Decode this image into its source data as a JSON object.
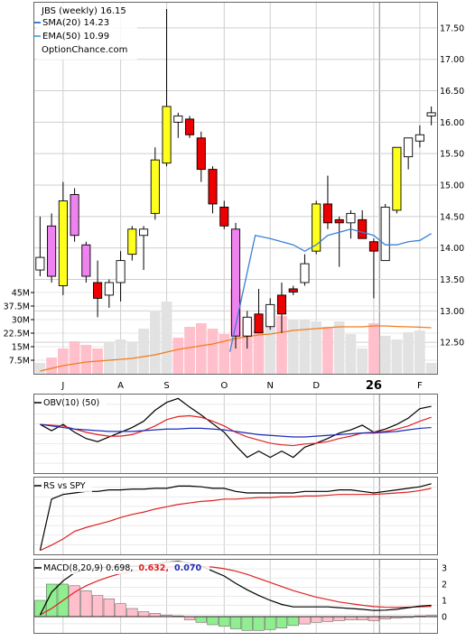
{
  "colors": {
    "up": "#ffff1e",
    "down": "#ee0000",
    "magenta": "#ee82ee",
    "white": "#ffffff",
    "sma": "#3a80d9",
    "ema": "#5ab5ee",
    "vol_red": "#ffc0cb",
    "vol_grey": "#e2e2e2",
    "vol_avg": "#f07c1e",
    "obv": "#000000",
    "obv_ma1": "#dd2222",
    "obv_ma2": "#1c2db8",
    "macd_line": "#000000",
    "macd_signal": "#dd2222",
    "hist_pos": "#90ee90",
    "hist_neg": "#ffc0cb",
    "grid": "#cfcfcf"
  },
  "chart_data": [
    {
      "type": "candlestick",
      "title": "JBS (weekly) 16.15",
      "legend": [
        {
          "label": "SMA(20) 14.23",
          "color": "#3a80d9"
        },
        {
          "label": "EMA(50) 10.99",
          "color": "#5ab5ee"
        },
        {
          "label": "OptionChance.com",
          "color": ""
        }
      ],
      "month_labels": [
        {
          "label": "J",
          "week": 2
        },
        {
          "label": "A",
          "week": 7
        },
        {
          "label": "S",
          "week": 11
        },
        {
          "label": "O",
          "week": 16
        },
        {
          "label": "N",
          "week": 20
        },
        {
          "label": "D",
          "week": 24
        },
        {
          "label": "26",
          "week": 29
        },
        {
          "label": "F",
          "week": 33
        }
      ],
      "year_divider_week": 29.5,
      "ylim": [
        12.0,
        17.9
      ],
      "yticks": [
        "12.50",
        "13.00",
        "13.50",
        "14.00",
        "14.50",
        "15.00",
        "15.50",
        "16.00",
        "16.50",
        "17.00",
        "17.50"
      ],
      "candles": [
        {
          "o": 13.65,
          "h": 14.5,
          "l": 13.55,
          "c": 13.85,
          "style": "white"
        },
        {
          "o": 13.55,
          "h": 14.55,
          "l": 13.45,
          "c": 14.35,
          "style": "magenta"
        },
        {
          "o": 13.4,
          "h": 15.05,
          "l": 13.25,
          "c": 14.75,
          "style": "up"
        },
        {
          "o": 14.2,
          "h": 14.95,
          "l": 14.1,
          "c": 14.85,
          "style": "magenta"
        },
        {
          "o": 13.55,
          "h": 14.1,
          "l": 13.45,
          "c": 14.05,
          "style": "magenta"
        },
        {
          "o": 13.45,
          "h": 13.8,
          "l": 12.9,
          "c": 13.2,
          "style": "down"
        },
        {
          "o": 13.25,
          "h": 13.5,
          "l": 13.05,
          "c": 13.45,
          "style": "white"
        },
        {
          "o": 13.45,
          "h": 13.95,
          "l": 13.15,
          "c": 13.8,
          "style": "white"
        },
        {
          "o": 13.9,
          "h": 14.35,
          "l": 13.8,
          "c": 14.3,
          "style": "up"
        },
        {
          "o": 14.2,
          "h": 14.35,
          "l": 13.65,
          "c": 14.3,
          "style": "white"
        },
        {
          "o": 14.55,
          "h": 15.6,
          "l": 14.45,
          "c": 15.4,
          "style": "up"
        },
        {
          "o": 15.35,
          "h": 17.8,
          "l": 15.3,
          "c": 16.25,
          "style": "up"
        },
        {
          "o": 16.1,
          "h": 16.15,
          "l": 15.75,
          "c": 16.0,
          "style": "white"
        },
        {
          "o": 16.05,
          "h": 16.1,
          "l": 15.75,
          "c": 15.8,
          "style": "down"
        },
        {
          "o": 15.75,
          "h": 15.85,
          "l": 15.05,
          "c": 15.25,
          "style": "down"
        },
        {
          "o": 15.25,
          "h": 15.3,
          "l": 14.55,
          "c": 14.7,
          "style": "down"
        },
        {
          "o": 14.65,
          "h": 14.75,
          "l": 14.3,
          "c": 14.35,
          "style": "down"
        },
        {
          "o": 14.3,
          "h": 14.4,
          "l": 12.4,
          "c": 12.6,
          "style": "magenta"
        },
        {
          "o": 12.6,
          "h": 13.0,
          "l": 12.4,
          "c": 12.9,
          "style": "white"
        },
        {
          "o": 12.95,
          "h": 13.35,
          "l": 12.65,
          "c": 12.65,
          "style": "down"
        },
        {
          "o": 12.75,
          "h": 13.2,
          "l": 12.7,
          "c": 13.1,
          "style": "white"
        },
        {
          "o": 13.25,
          "h": 13.45,
          "l": 12.65,
          "c": 12.95,
          "style": "down"
        },
        {
          "o": 13.3,
          "h": 13.4,
          "l": 13.25,
          "c": 13.35,
          "style": "down"
        },
        {
          "o": 13.45,
          "h": 13.9,
          "l": 13.4,
          "c": 13.75,
          "style": "white"
        },
        {
          "o": 14.7,
          "h": 14.75,
          "l": 13.9,
          "c": 13.95,
          "style": "up"
        },
        {
          "o": 14.7,
          "h": 15.15,
          "l": 14.3,
          "c": 14.4,
          "style": "down"
        },
        {
          "o": 14.45,
          "h": 14.5,
          "l": 13.7,
          "c": 14.4,
          "style": "down"
        },
        {
          "o": 14.4,
          "h": 14.6,
          "l": 14.15,
          "c": 14.55,
          "style": "white"
        },
        {
          "o": 14.45,
          "h": 14.6,
          "l": 14.15,
          "c": 14.15,
          "style": "down"
        },
        {
          "o": 14.1,
          "h": 14.15,
          "l": 13.2,
          "c": 13.95,
          "style": "down"
        },
        {
          "o": 13.8,
          "h": 14.7,
          "l": 13.8,
          "c": 14.65,
          "style": "white"
        },
        {
          "o": 14.6,
          "h": 15.6,
          "l": 14.55,
          "c": 15.6,
          "style": "up"
        },
        {
          "o": 15.45,
          "h": 15.75,
          "l": 15.25,
          "c": 15.75,
          "style": "white"
        },
        {
          "o": 15.7,
          "h": 15.95,
          "l": 15.6,
          "c": 15.8,
          "style": "white"
        },
        {
          "o": 16.1,
          "h": 16.25,
          "l": 15.95,
          "c": 16.15,
          "style": "white"
        }
      ],
      "sma": [
        {
          "week": 16.5,
          "v": 12.35
        },
        {
          "week": 18.7,
          "v": 14.2
        },
        {
          "week": 20,
          "v": 14.15
        },
        {
          "week": 22,
          "v": 14.05
        },
        {
          "week": 23,
          "v": 13.95
        },
        {
          "week": 24,
          "v": 14.05
        },
        {
          "week": 25,
          "v": 14.2
        },
        {
          "week": 26,
          "v": 14.25
        },
        {
          "week": 27,
          "v": 14.3
        },
        {
          "week": 28,
          "v": 14.25
        },
        {
          "week": 29,
          "v": 14.2
        },
        {
          "week": 30,
          "v": 14.05
        },
        {
          "week": 31,
          "v": 14.05
        },
        {
          "week": 32,
          "v": 14.1
        },
        {
          "week": 33,
          "v": 14.12
        },
        {
          "week": 34,
          "v": 14.23
        }
      ],
      "volume": {
        "yticks": [
          "7.5M",
          "15M",
          "22.5M",
          "30M",
          "37.5M",
          "45M"
        ],
        "ylim": [
          0,
          46
        ],
        "bars": [
          {
            "v": 6,
            "c": "grey"
          },
          {
            "v": 9,
            "c": "red"
          },
          {
            "v": 14,
            "c": "red"
          },
          {
            "v": 18,
            "c": "red"
          },
          {
            "v": 16,
            "c": "red"
          },
          {
            "v": 14,
            "c": "red"
          },
          {
            "v": 17,
            "c": "grey"
          },
          {
            "v": 19,
            "c": "grey"
          },
          {
            "v": 17,
            "c": "grey"
          },
          {
            "v": 25,
            "c": "grey"
          },
          {
            "v": 35,
            "c": "grey"
          },
          {
            "v": 40,
            "c": "grey"
          },
          {
            "v": 20,
            "c": "red"
          },
          {
            "v": 26,
            "c": "red"
          },
          {
            "v": 28,
            "c": "red"
          },
          {
            "v": 25,
            "c": "red"
          },
          {
            "v": 22,
            "c": "red"
          },
          {
            "v": 47,
            "c": "red"
          },
          {
            "v": 30,
            "c": "red"
          },
          {
            "v": 24,
            "c": "red"
          },
          {
            "v": 29,
            "c": "grey"
          },
          {
            "v": 32,
            "c": "red"
          },
          {
            "v": 30,
            "c": "grey"
          },
          {
            "v": 30,
            "c": "grey"
          },
          {
            "v": 29,
            "c": "grey"
          },
          {
            "v": 26,
            "c": "red"
          },
          {
            "v": 29,
            "c": "grey"
          },
          {
            "v": 22,
            "c": "grey"
          },
          {
            "v": 14,
            "c": "grey"
          },
          {
            "v": 28,
            "c": "red"
          },
          {
            "v": 21,
            "c": "grey"
          },
          {
            "v": 19,
            "c": "grey"
          },
          {
            "v": 23,
            "c": "grey"
          },
          {
            "v": 24,
            "c": "grey"
          },
          {
            "v": 6,
            "c": "grey"
          }
        ],
        "avg": [
          1.5,
          3,
          4.5,
          5.5,
          6.5,
          7,
          7.5,
          8,
          8.5,
          9.5,
          10.5,
          12,
          13.5,
          14.5,
          15.5,
          16.5,
          18,
          19.5,
          20.5,
          21.5,
          22,
          23,
          24,
          24.5,
          25,
          25.5,
          26,
          26,
          26,
          26.5,
          26.5,
          26.2,
          26,
          25.8,
          25.5
        ]
      }
    },
    {
      "type": "line",
      "title": "OBV(10) (50)",
      "ylim": [
        0,
        100
      ],
      "series": [
        {
          "name": "OBV(10)",
          "color": "#000000",
          "values": [
            62,
            54,
            62,
            52,
            44,
            40,
            46,
            52,
            58,
            66,
            80,
            90,
            95,
            84,
            74,
            63,
            52,
            35,
            20,
            28,
            20,
            28,
            20,
            33,
            38,
            44,
            51,
            55,
            61,
            52,
            56,
            62,
            70,
            82,
            85
          ]
        },
        {
          "name": "50",
          "color": "#dd2222",
          "values": [
            62,
            61,
            60,
            56,
            52,
            49,
            47,
            47,
            49,
            54,
            60,
            68,
            72,
            73,
            71,
            66,
            60,
            52,
            46,
            42,
            38,
            36,
            35,
            37,
            38,
            40,
            44,
            47,
            51,
            52,
            53,
            56,
            60,
            66,
            71
          ]
        },
        {
          "name": "",
          "color": "#1c2db8",
          "values": [
            62,
            60,
            58,
            56,
            55,
            54,
            53,
            53,
            53,
            54,
            55,
            56,
            56,
            57,
            57,
            56,
            55,
            53,
            51,
            49,
            48,
            47,
            46,
            46,
            47,
            48,
            49,
            50,
            51,
            51,
            52,
            53,
            55,
            57,
            58
          ]
        }
      ]
    },
    {
      "type": "line",
      "title": "RS vs SPY",
      "ylim": [
        0,
        100
      ],
      "series": [
        {
          "name": "",
          "color": "#000000",
          "values": [
            5,
            72,
            78,
            80,
            82,
            82,
            84,
            84,
            85,
            85,
            86,
            86,
            89,
            89,
            88,
            86,
            86,
            82,
            80,
            80,
            80,
            80,
            80,
            82,
            82,
            82,
            84,
            84,
            82,
            80,
            82,
            84,
            86,
            88,
            92
          ]
        },
        {
          "name": "",
          "color": "#dd2222",
          "values": [
            5,
            12,
            20,
            30,
            35,
            39,
            43,
            48,
            52,
            55,
            59,
            62,
            65,
            67,
            69,
            70,
            72,
            72,
            73,
            74,
            74,
            75,
            75,
            76,
            76,
            77,
            78,
            78,
            78,
            78,
            79,
            80,
            81,
            83,
            86
          ]
        }
      ]
    },
    {
      "type": "bar",
      "title": "MACD(8,20,9) 0.698,",
      "signal_label": "0.632,",
      "hist_label": "0.070",
      "ylim": [
        -1.0,
        3.5
      ],
      "yticks": [
        "0",
        "1",
        "2",
        "3"
      ],
      "macd_line": [
        0.1,
        1.5,
        2.2,
        2.7,
        2.9,
        3.0,
        3.05,
        3.1,
        3.1,
        3.12,
        3.2,
        3.35,
        3.4,
        3.3,
        3.1,
        2.8,
        2.5,
        2.05,
        1.65,
        1.3,
        1.0,
        0.75,
        0.6,
        0.6,
        0.6,
        0.6,
        0.55,
        0.5,
        0.45,
        0.38,
        0.4,
        0.45,
        0.55,
        0.65,
        0.698
      ],
      "signal_line": [
        0.1,
        0.5,
        1.0,
        1.5,
        1.9,
        2.2,
        2.45,
        2.65,
        2.8,
        2.9,
        3.0,
        3.05,
        3.1,
        3.1,
        3.1,
        3.05,
        2.95,
        2.8,
        2.6,
        2.35,
        2.1,
        1.85,
        1.6,
        1.4,
        1.2,
        1.05,
        0.9,
        0.8,
        0.7,
        0.62,
        0.58,
        0.57,
        0.58,
        0.6,
        0.632
      ],
      "histogram": [
        1.0,
        2.0,
        2.0,
        1.9,
        1.6,
        1.3,
        1.1,
        0.8,
        0.5,
        0.3,
        0.2,
        0.1,
        0.05,
        -0.2,
        -0.35,
        -0.5,
        -0.6,
        -0.75,
        -0.85,
        -0.85,
        -0.8,
        -0.7,
        -0.55,
        -0.45,
        -0.35,
        -0.3,
        -0.25,
        -0.2,
        -0.2,
        -0.25,
        -0.15,
        -0.1,
        0.0,
        0.05,
        0.07
      ]
    }
  ]
}
